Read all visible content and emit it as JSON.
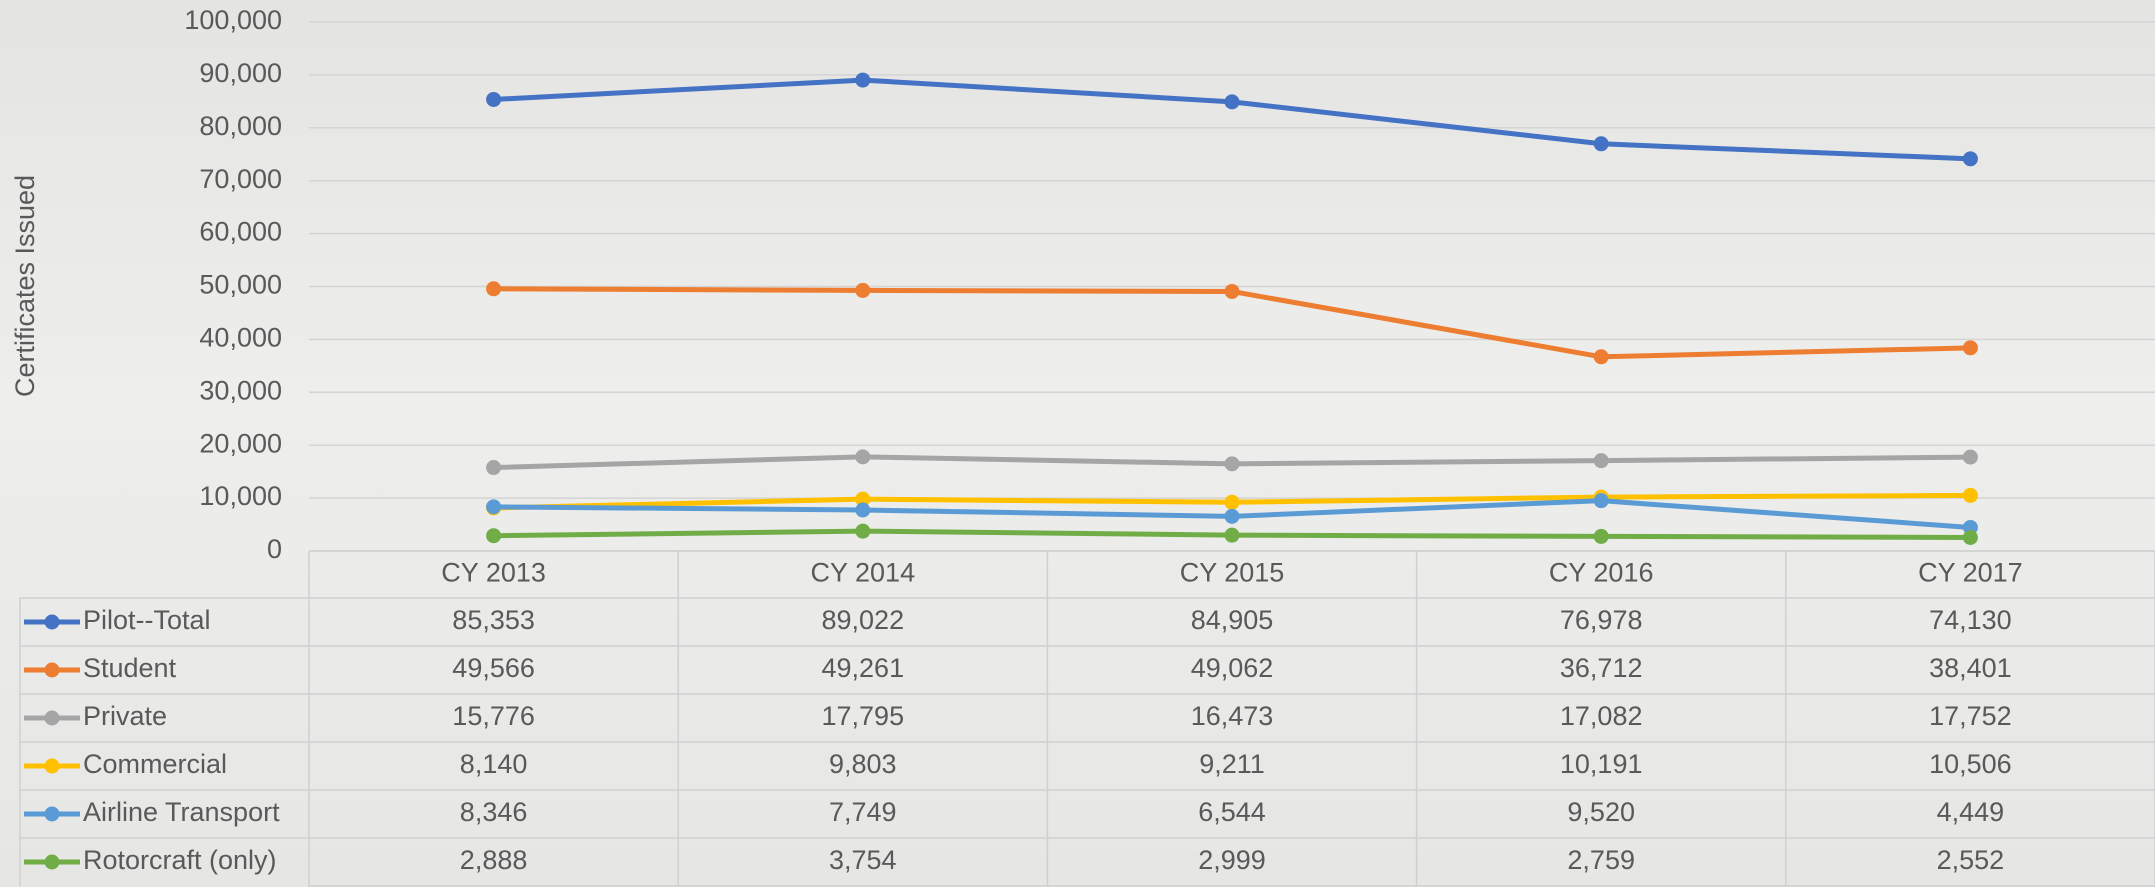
{
  "chart_data": {
    "type": "line",
    "y_label": "Certificates Issued",
    "categories": [
      "CY 2013",
      "CY 2014",
      "CY 2015",
      "CY 2016",
      "CY 2017"
    ],
    "ylim": [
      0,
      100000
    ],
    "yticks": [
      0,
      {
        "value": 10000,
        "label": "10,000"
      },
      {
        "value": 20000,
        "label": "20,000"
      },
      {
        "value": 30000,
        "label": "30,000"
      },
      {
        "value": 40000,
        "label": "40,000"
      },
      {
        "value": 50000,
        "label": "50,000"
      },
      {
        "value": 60000,
        "label": "60,000"
      },
      {
        "value": 70000,
        "label": "70,000"
      },
      {
        "value": 80000,
        "label": "80,000"
      },
      {
        "value": 90000,
        "label": "90,000"
      },
      {
        "value": 100000,
        "label": "100,000"
      }
    ],
    "grid": true,
    "series": [
      {
        "name": "Pilot--Total",
        "color": "#4472c4",
        "values": [
          85353,
          89022,
          84905,
          76978,
          74130
        ],
        "value_labels": [
          "85,353",
          "89,022",
          "84,905",
          "76,978",
          "74,130"
        ]
      },
      {
        "name": "Student",
        "color": "#ed7d31",
        "values": [
          49566,
          49261,
          49062,
          36712,
          38401
        ],
        "value_labels": [
          "49,566",
          "49,261",
          "49,062",
          "36,712",
          "38,401"
        ]
      },
      {
        "name": "Private",
        "color": "#a5a5a5",
        "values": [
          15776,
          17795,
          16473,
          17082,
          17752
        ],
        "value_labels": [
          "15,776",
          "17,795",
          "16,473",
          "17,082",
          "17,752"
        ]
      },
      {
        "name": "Commercial",
        "color": "#ffc000",
        "values": [
          8140,
          9803,
          9211,
          10191,
          10506
        ],
        "value_labels": [
          "8,140",
          "9,803",
          "9,211",
          "10,191",
          "10,506"
        ]
      },
      {
        "name": "Airline Transport",
        "color": "#5b9bd5",
        "values": [
          8346,
          7749,
          6544,
          9520,
          4449
        ],
        "value_labels": [
          "8,346",
          "7,749",
          "6,544",
          "9,520",
          "4,449"
        ]
      },
      {
        "name": "Rotorcraft (only)",
        "color": "#70ad47",
        "values": [
          2888,
          3754,
          2999,
          2759,
          2552
        ],
        "value_labels": [
          "2,888",
          "3,754",
          "2,999",
          "2,759",
          "2,552"
        ]
      }
    ]
  }
}
